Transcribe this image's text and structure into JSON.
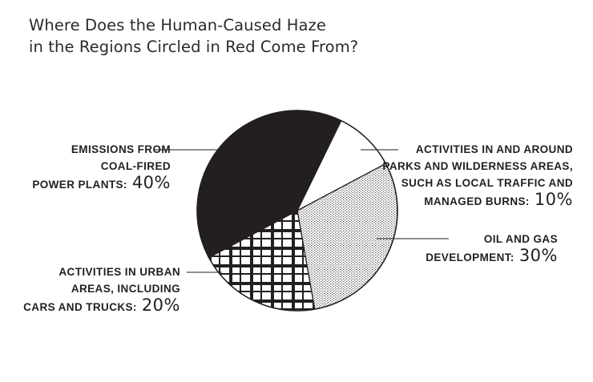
{
  "chart_data": {
    "type": "pie",
    "title": "Where Does the Human-Caused Haze in the Regions Circled in Red Come From?",
    "title_lines": [
      "Where Does the Human-Caused Haze",
      "in the Regions Circled in Red Come From?"
    ],
    "slices": [
      {
        "label_lines": [
          "EMISSIONS FROM",
          "COAL-FIRED",
          "POWER PLANTS:"
        ],
        "value": 40,
        "value_label": "40%",
        "fill": "solid-black"
      },
      {
        "label_lines": [
          "ACTIVITIES IN AND AROUND",
          "PARKS AND WILDERNESS AREAS,",
          "SUCH AS LOCAL TRAFFIC AND",
          "MANAGED BURNS:"
        ],
        "value": 10,
        "value_label": "10%",
        "fill": "white"
      },
      {
        "label_lines": [
          "OIL AND GAS",
          "DEVELOPMENT:"
        ],
        "value": 30,
        "value_label": "30%",
        "fill": "fine-dot-stipple"
      },
      {
        "label_lines": [
          "ACTIVITIES IN URBAN",
          "AREAS, INCLUDING",
          "CARS AND TRUCKS:"
        ],
        "value": 20,
        "value_label": "20%",
        "fill": "plaid-grid"
      }
    ],
    "colors": {
      "ink": "#231f20",
      "background": "#ffffff"
    }
  }
}
